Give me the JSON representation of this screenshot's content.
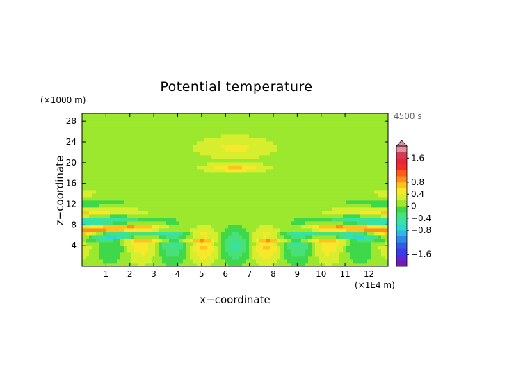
{
  "chart_data": {
    "type": "heatmap",
    "title": "Potential temperature",
    "xlabel": "x−coordinate",
    "ylabel": "z−coordinate",
    "x_units": "(×1E4 m)",
    "y_units": "(×1000 m)",
    "time_label": "4500 s",
    "xlim": [
      0,
      12.8
    ],
    "ylim": [
      0,
      29.5
    ],
    "x_ticks": [
      1,
      2,
      3,
      4,
      5,
      6,
      7,
      8,
      9,
      10,
      11,
      12
    ],
    "y_ticks": [
      4,
      8,
      12,
      16,
      20,
      24,
      28
    ],
    "colorbar": {
      "ticks": [
        {
          "value": 1.6,
          "label": "1.6"
        },
        {
          "value": 0.8,
          "label": "0.8"
        },
        {
          "value": 0.4,
          "label": "0.4"
        },
        {
          "value": 0,
          "label": "0"
        },
        {
          "value": -0.4,
          "label": "−0.4"
        },
        {
          "value": -0.8,
          "label": "−0.8"
        },
        {
          "value": -1.6,
          "label": "−1.6"
        }
      ],
      "range": [
        -2.0,
        2.0
      ],
      "colors": [
        "#7a17b3",
        "#5b2ad6",
        "#3a3ee8",
        "#2f5de6",
        "#2f8ae6",
        "#2fb8e6",
        "#2fd6d0",
        "#35e3a5",
        "#48e07a",
        "#3fd84a",
        "#9be82f",
        "#d6ee2e",
        "#f7e82b",
        "#ffc21e",
        "#ff8f1a",
        "#ff5a1a",
        "#f52a2a",
        "#e2263b",
        "#d43b57",
        "#e08fa0"
      ]
    },
    "field_description_values": {
      "background_level": 0.0,
      "upper_ray_amplitude": 0.8,
      "lower_ray_amplitude": -0.5
    }
  }
}
